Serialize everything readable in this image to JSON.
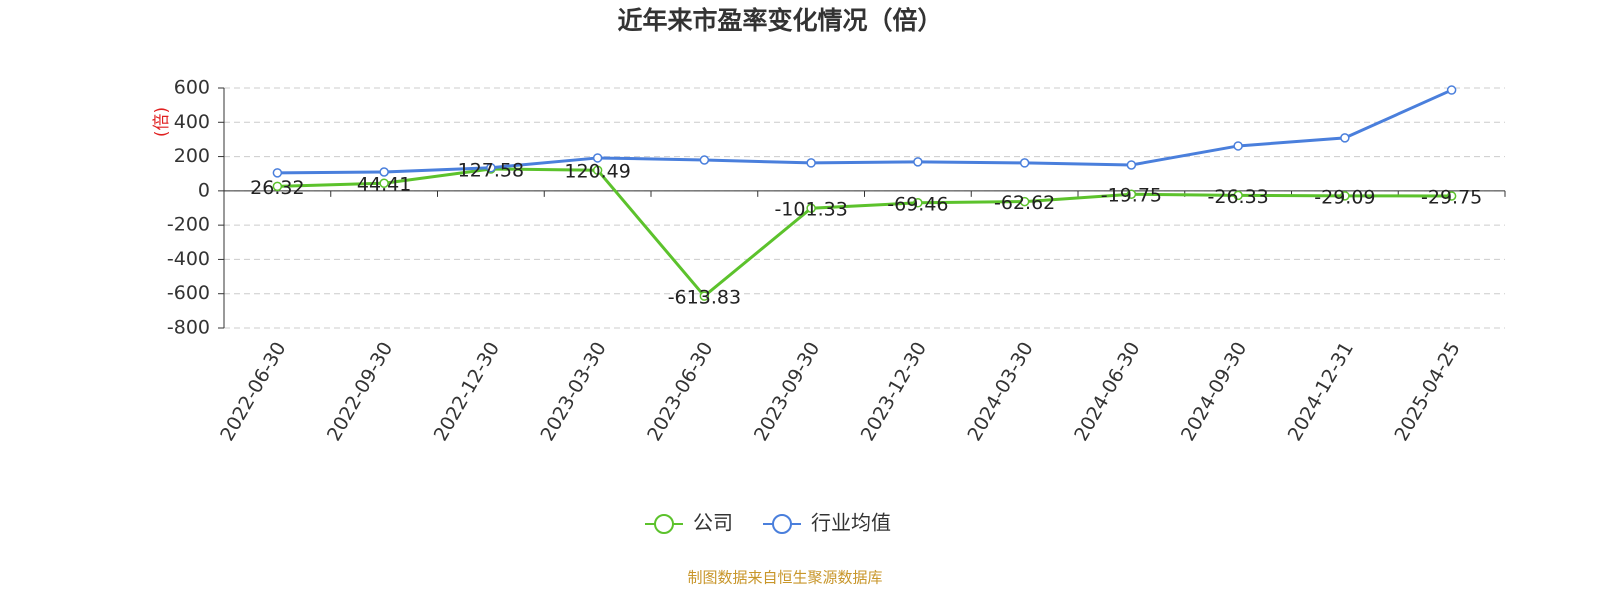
{
  "chart_data": {
    "type": "line",
    "title": "近年来市盈率变化情况（倍）",
    "y_label": "(倍)",
    "categories": [
      "2022-06-30",
      "2022-09-30",
      "2022-12-30",
      "2023-03-30",
      "2023-06-30",
      "2023-09-30",
      "2023-12-30",
      "2024-03-30",
      "2024-06-30",
      "2024-09-30",
      "2024-12-31",
      "2025-04-25"
    ],
    "series": [
      {
        "name": "公司",
        "color": "#5cc22c",
        "values": [
          26.32,
          44.41,
          127.58,
          120.49,
          -613.83,
          -101.33,
          -69.46,
          -62.62,
          -19.75,
          -26.33,
          -29.09,
          -29.75
        ],
        "show_labels": true
      },
      {
        "name": "行业均值",
        "color": "#4a7fdc",
        "values": [
          105,
          110,
          135,
          192,
          180,
          163,
          169,
          163,
          151,
          262,
          309,
          588
        ],
        "show_labels": false
      }
    ],
    "ylim": [
      -800,
      600
    ],
    "yticks": [
      -800,
      -600,
      -400,
      -200,
      0,
      200,
      400,
      600
    ],
    "grid": true,
    "source": "制图数据来自恒生聚源数据库"
  }
}
